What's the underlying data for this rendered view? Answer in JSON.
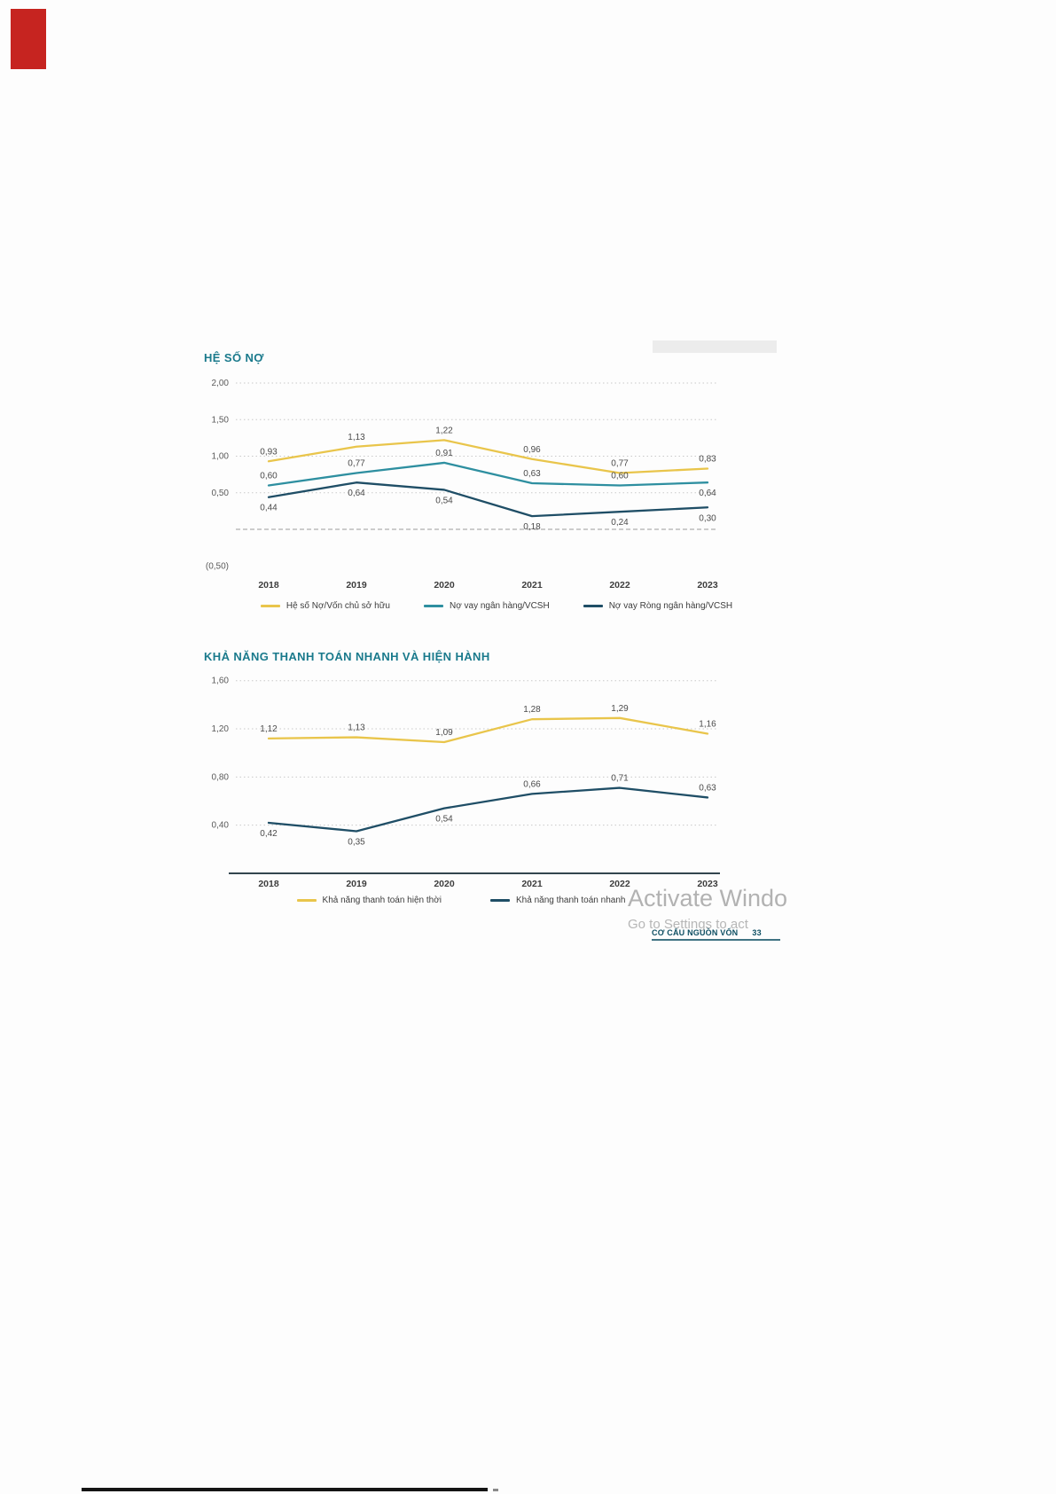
{
  "page": {
    "watermark": {
      "line1": "Activate Windo",
      "line2": "Go to Settings to act"
    },
    "footer": {
      "section_label": "CƠ CẤU NGUỒN VỐN",
      "page_number": "33"
    }
  },
  "colors": {
    "title_teal": "#1A7A8C",
    "series_yellow": "#E9C54B",
    "series_teal": "#2E8FA0",
    "series_navy": "#1F4E66",
    "corner_red": "#C62420",
    "watermark_gray": "#A5A5A5"
  },
  "chart_data": [
    {
      "type": "line",
      "title": "HỆ SỐ NỢ",
      "categories": [
        "2018",
        "2019",
        "2020",
        "2021",
        "2022",
        "2023"
      ],
      "series": [
        {
          "name": "Hệ số Nợ/Vốn chủ sở hữu",
          "color": "#E9C54B",
          "values": [
            0.93,
            1.13,
            1.22,
            0.96,
            0.77,
            0.83
          ],
          "label_pos": [
            "above",
            "above",
            "above",
            "above",
            "above",
            "above"
          ]
        },
        {
          "name": "Nợ vay ngân hàng/VCSH",
          "color": "#2E8FA0",
          "values": [
            0.6,
            0.77,
            0.91,
            0.63,
            0.6,
            0.64
          ],
          "label_pos": [
            "above",
            "above",
            "above",
            "above",
            "above",
            "below"
          ]
        },
        {
          "name": "Nợ vay Ròng ngân hàng/VCSH",
          "color": "#1F4E66",
          "values": [
            0.44,
            0.64,
            0.54,
            0.18,
            0.24,
            0.3
          ],
          "label_pos": [
            "below",
            "below",
            "below",
            "below",
            "below",
            "below"
          ]
        }
      ],
      "y_ticks": [
        {
          "label": "2,00",
          "value": 2.0,
          "grid": true
        },
        {
          "label": "1,50",
          "value": 1.5,
          "grid": true
        },
        {
          "label": "1,00",
          "value": 1.0,
          "grid": true
        },
        {
          "label": "0,50",
          "value": 0.5,
          "grid": true
        },
        {
          "label": "(0,50)",
          "value": -0.5,
          "grid": false
        }
      ],
      "ylim": [
        -0.5,
        2.0
      ],
      "zero_line": true,
      "baseline": false,
      "grid": "dotted-horizontal",
      "legend_position": "bottom",
      "number_format": "comma-decimal"
    },
    {
      "type": "line",
      "title": "KHẢ NĂNG THANH TOÁN NHANH VÀ HIỆN HÀNH",
      "categories": [
        "2018",
        "2019",
        "2020",
        "2021",
        "2022",
        "2023"
      ],
      "series": [
        {
          "name": "Khả năng thanh toán hiện thời",
          "color": "#E9C54B",
          "values": [
            1.12,
            1.13,
            1.09,
            1.28,
            1.29,
            1.16
          ],
          "label_pos": [
            "above",
            "above",
            "above",
            "above",
            "above",
            "above"
          ]
        },
        {
          "name": "Khả năng thanh toán nhanh",
          "color": "#1F4E66",
          "values": [
            0.42,
            0.35,
            0.54,
            0.66,
            0.71,
            0.63
          ],
          "label_pos": [
            "below",
            "below",
            "below",
            "above",
            "above",
            "above"
          ]
        }
      ],
      "y_ticks": [
        {
          "label": "1,60",
          "value": 1.6,
          "grid": true
        },
        {
          "label": "1,20",
          "value": 1.2,
          "grid": true
        },
        {
          "label": "0,80",
          "value": 0.8,
          "grid": true
        },
        {
          "label": "0,40",
          "value": 0.4,
          "grid": true
        }
      ],
      "ylim": [
        0,
        1.6
      ],
      "zero_line": false,
      "baseline": true,
      "grid": "dotted-horizontal",
      "legend_position": "bottom",
      "number_format": "comma-decimal"
    }
  ]
}
